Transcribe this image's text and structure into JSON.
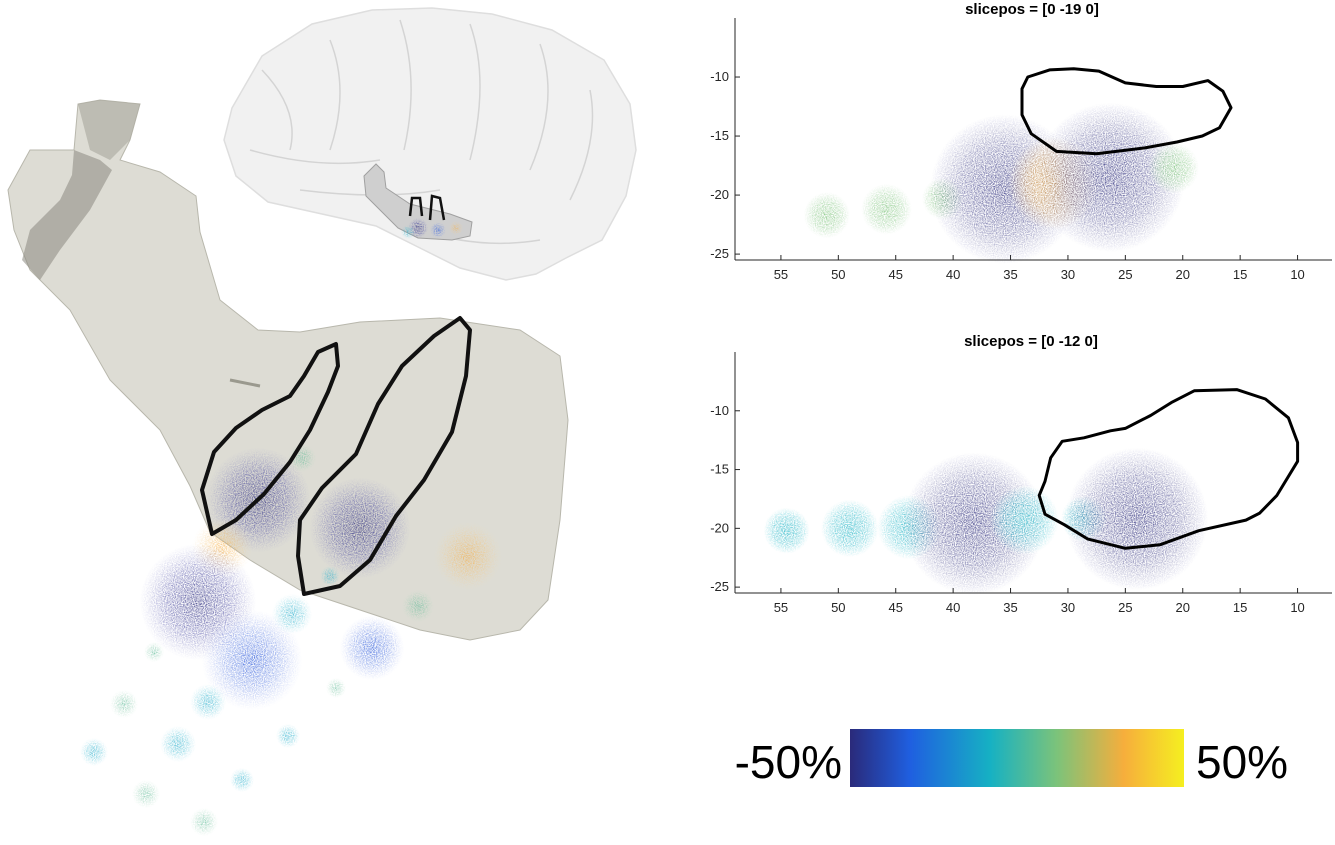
{
  "colors": {
    "colormap": [
      "#2a2a7a",
      "#1f5fe0",
      "#16b1c3",
      "#7cc37a",
      "#f6ae3c",
      "#f5ef20"
    ],
    "outline": "#000000",
    "hippocampus_fill": "#d7d6cc",
    "brain_fill": "#e6e6e6"
  },
  "scene3d": {
    "icons": [
      "brain-glass-render",
      "hippocampus-surface"
    ]
  },
  "colorbar": {
    "min_label": "-50%",
    "max_label": "50%",
    "range": [
      -50,
      50
    ]
  },
  "chart_data": [
    {
      "type": "scatter",
      "title": "slicepos = [0 -19 0]",
      "xlabel": "",
      "ylabel": "",
      "x_reversed": true,
      "xlim": [
        59,
        7
      ],
      "ylim": [
        -25.5,
        -5
      ],
      "xticks": [
        55,
        50,
        45,
        40,
        35,
        30,
        25,
        20,
        15,
        10
      ],
      "yticks": [
        -10,
        -15,
        -20,
        -25
      ],
      "grid": false,
      "points": [
        {
          "x": 51,
          "y": -21.7,
          "r": 2.0,
          "value": 5
        },
        {
          "x": 45.8,
          "y": -21.2,
          "r": 2.2,
          "value": 10
        },
        {
          "x": 40.9,
          "y": -20.3,
          "r": 1.8,
          "value": 8
        },
        {
          "x": 35.5,
          "y": -19.5,
          "r": 6.5,
          "value": -45
        },
        {
          "x": 31.2,
          "y": -19.0,
          "r": 4.0,
          "value": 35
        },
        {
          "x": 26.3,
          "y": -18.5,
          "r": 6.5,
          "value": -42
        },
        {
          "x": 20.8,
          "y": -17.7,
          "r": 2.2,
          "value": 12
        }
      ],
      "outline": [
        [
          34,
          -11
        ],
        [
          33.5,
          -10
        ],
        [
          31.6,
          -9.4
        ],
        [
          29.5,
          -9.3
        ],
        [
          27.3,
          -9.5
        ],
        [
          25,
          -10.5
        ],
        [
          22.3,
          -10.8
        ],
        [
          20,
          -10.8
        ],
        [
          17.8,
          -10.3
        ],
        [
          16.5,
          -11.2
        ],
        [
          15.8,
          -12.6
        ],
        [
          16.8,
          -14.3
        ],
        [
          18.3,
          -15.0
        ],
        [
          20.5,
          -15.5
        ],
        [
          23.3,
          -16.0
        ],
        [
          27.5,
          -16.5
        ],
        [
          31,
          -16.3
        ],
        [
          33.2,
          -14.8
        ],
        [
          34,
          -13.2
        ],
        [
          34,
          -11
        ]
      ]
    },
    {
      "type": "scatter",
      "title": "slicepos = [0 -12 0]",
      "xlabel": "",
      "ylabel": "",
      "x_reversed": true,
      "xlim": [
        59,
        7
      ],
      "ylim": [
        -25.5,
        -5
      ],
      "xticks": [
        55,
        50,
        45,
        40,
        35,
        30,
        25,
        20,
        15,
        10
      ],
      "yticks": [
        -10,
        -15,
        -20,
        -25
      ],
      "grid": false,
      "points": [
        {
          "x": 54.5,
          "y": -20.2,
          "r": 2.0,
          "value": 2
        },
        {
          "x": 49.0,
          "y": -20.0,
          "r": 2.5,
          "value": 3
        },
        {
          "x": 43.8,
          "y": -19.9,
          "r": 2.8,
          "value": 0
        },
        {
          "x": 38.2,
          "y": -19.6,
          "r": 6.2,
          "value": -40
        },
        {
          "x": 33.8,
          "y": -19.3,
          "r": 3.0,
          "value": -5
        },
        {
          "x": 28.6,
          "y": -19.2,
          "r": 2.0,
          "value": -3
        },
        {
          "x": 24.0,
          "y": -19.2,
          "r": 6.2,
          "value": -44
        }
      ],
      "outline": [
        [
          32,
          -16
        ],
        [
          31.5,
          -14.0
        ],
        [
          30.5,
          -12.6
        ],
        [
          28.6,
          -12.3
        ],
        [
          26.3,
          -11.7
        ],
        [
          25,
          -11.5
        ],
        [
          22.8,
          -10.4
        ],
        [
          21,
          -9.3
        ],
        [
          19.0,
          -8.3
        ],
        [
          15.3,
          -8.2
        ],
        [
          12.8,
          -9.0
        ],
        [
          10.8,
          -10.6
        ],
        [
          10.0,
          -12.7
        ],
        [
          10.0,
          -14.3
        ],
        [
          11.8,
          -17.2
        ],
        [
          13.3,
          -18.7
        ],
        [
          14.5,
          -19.3
        ],
        [
          18.6,
          -20.2
        ],
        [
          22,
          -21.4
        ],
        [
          25,
          -21.7
        ],
        [
          28.3,
          -20.9
        ],
        [
          30.3,
          -19.7
        ],
        [
          32,
          -18.8
        ],
        [
          32.5,
          -17.2
        ],
        [
          32,
          -16
        ]
      ]
    }
  ]
}
